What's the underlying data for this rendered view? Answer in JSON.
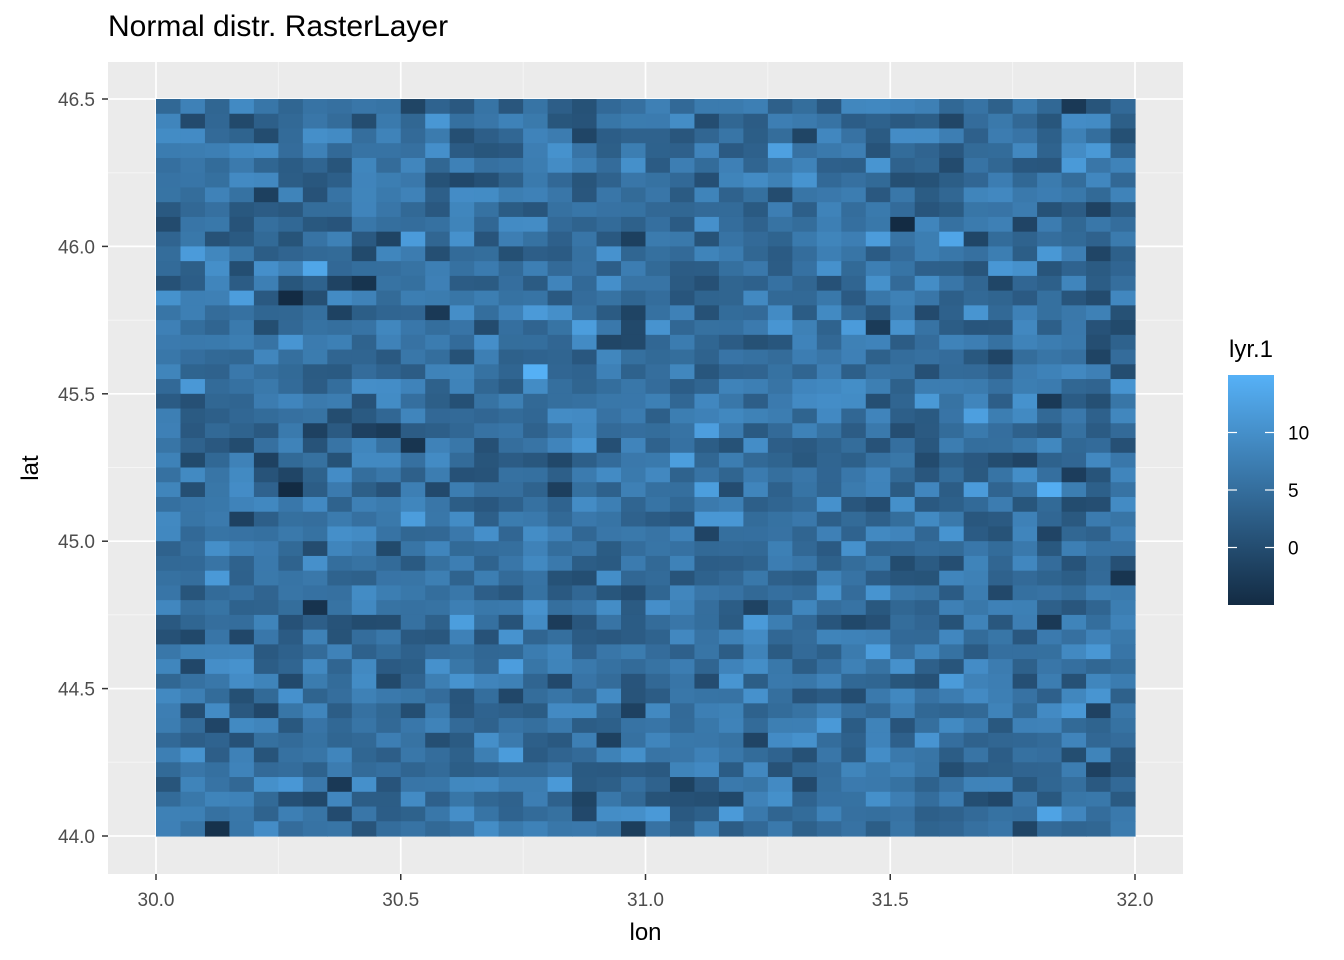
{
  "chart_data": {
    "type": "heatmap",
    "title": "Normal distr. RasterLayer",
    "xlabel": "lon",
    "ylabel": "lat",
    "xlim": [
      30.0,
      32.0
    ],
    "ylim": [
      44.0,
      46.5
    ],
    "x_ticks": [
      "30.0",
      "30.5",
      "31.0",
      "31.5",
      "32.0"
    ],
    "y_ticks": [
      "44.0",
      "44.5",
      "45.0",
      "45.5",
      "46.0",
      "46.5"
    ],
    "grid": {
      "ncols": 40,
      "nrows": 50,
      "distribution": "normal",
      "mean": 5,
      "sd": 3
    },
    "legend": {
      "title": "lyr.1",
      "position": "right",
      "breaks": [
        "10",
        "5",
        "0"
      ],
      "range": [
        -5,
        15
      ],
      "low_color": "#132B43",
      "high_color": "#56B1F7"
    }
  },
  "colors": {
    "panel_background": "#EBEBEB",
    "grid_major": "#FFFFFF",
    "grid_minor": "#F5F5F5"
  }
}
